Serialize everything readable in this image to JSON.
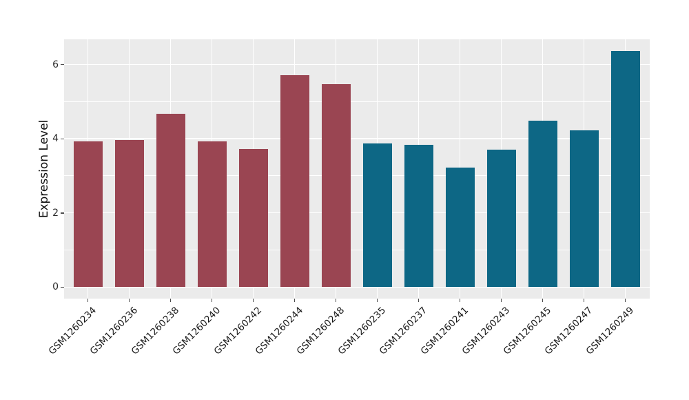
{
  "chart_data": {
    "type": "bar",
    "title": "",
    "xlabel": "",
    "ylabel": "Expression Level",
    "categories": [
      "GSM1260234",
      "GSM1260236",
      "GSM1260238",
      "GSM1260240",
      "GSM1260242",
      "GSM1260244",
      "GSM1260248",
      "GSM1260235",
      "GSM1260237",
      "GSM1260241",
      "GSM1260243",
      "GSM1260245",
      "GSM1260247",
      "GSM1260249"
    ],
    "values": [
      3.92,
      3.96,
      4.67,
      3.92,
      3.73,
      5.71,
      5.47,
      3.87,
      3.83,
      3.23,
      3.71,
      4.48,
      4.22,
      6.36
    ],
    "point_groups": [
      "maroon",
      "maroon",
      "maroon",
      "maroon",
      "maroon",
      "maroon",
      "maroon",
      "teal",
      "teal",
      "teal",
      "teal",
      "teal",
      "teal",
      "teal"
    ],
    "group_colors": {
      "maroon": "#9a4552",
      "teal": "#0d6785"
    },
    "yticks": [
      0,
      2,
      4,
      6
    ],
    "yticks_minor": [
      1,
      3,
      5
    ],
    "ylim": [
      -0.31,
      6.68
    ],
    "grid": true,
    "legend": "none",
    "panel_bg": "#ebebeb",
    "grid_color": "#ffffff",
    "tick_color": "#4d4d4d",
    "x_tick_rotation_deg": 45
  }
}
